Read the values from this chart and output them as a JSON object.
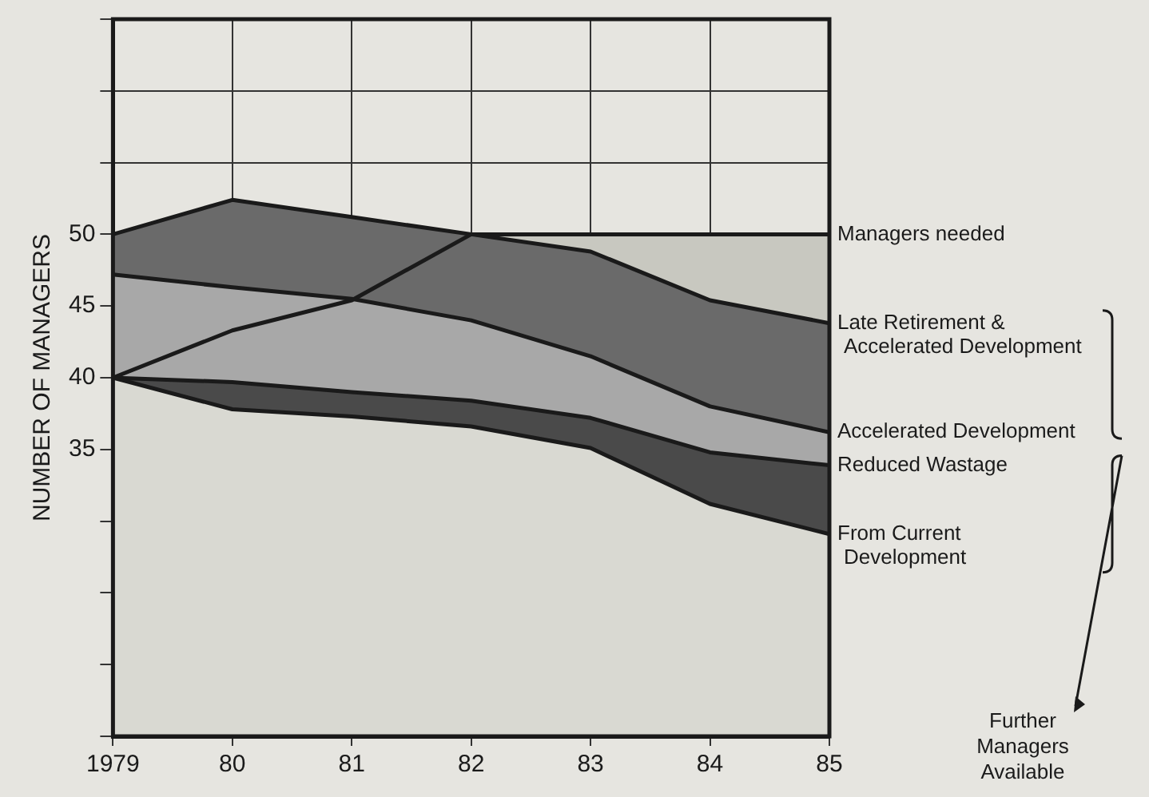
{
  "chart_data": {
    "type": "area",
    "ylabel": "NUMBER OF MANAGERS",
    "x": [
      1979,
      1980,
      1981,
      1982,
      1983,
      1984,
      1985
    ],
    "series": [
      {
        "name": "From Current Development",
        "color": "#d9d9d2",
        "values": [
          40,
          37.8,
          37.3,
          36.6,
          35.1,
          31.2,
          29.1
        ]
      },
      {
        "name": "Reduced Wastage",
        "color": "#4a4a4a",
        "values": [
          40,
          39.7,
          39,
          38.4,
          37.2,
          34.8,
          33.9
        ]
      },
      {
        "name": "Accelerated Development",
        "color": "#a8a8a8",
        "values": [
          47.2,
          46.3,
          45.5,
          44,
          41.5,
          38,
          36.2
        ]
      },
      {
        "name": "Late Retirement & Accelerated Development",
        "color": "#6a6a6a",
        "values": [
          50,
          52.4,
          51.2,
          50,
          48.8,
          45.4,
          43.8
        ]
      },
      {
        "name": "Managers needed",
        "color": "#c8c8c0",
        "values": [
          40,
          43.3,
          45.4,
          50,
          50,
          50,
          50
        ]
      }
    ],
    "xlim": [
      1979,
      1985
    ],
    "xticks": [
      1979,
      {
        "value": 1980,
        "label": "80"
      },
      {
        "value": 1981,
        "label": "81"
      },
      {
        "value": 1982,
        "label": "82"
      },
      {
        "value": 1983,
        "label": "83"
      },
      {
        "value": 1984,
        "label": "84"
      },
      {
        "value": 1985,
        "label": "85"
      }
    ],
    "ylim": [
      15,
      65
    ],
    "yticks": [
      {
        "value": 15,
        "label": null
      },
      {
        "value": 20,
        "label": null
      },
      {
        "value": 25,
        "label": null
      },
      {
        "value": 30,
        "label": null
      },
      35,
      40,
      45,
      50,
      {
        "value": 55,
        "label": null
      },
      {
        "value": 60,
        "label": null
      },
      {
        "value": 65,
        "label": null
      }
    ],
    "grid": true,
    "legend": false,
    "marker": "none",
    "line_style": "solid",
    "annotations": [
      "Further Managers Available"
    ]
  }
}
